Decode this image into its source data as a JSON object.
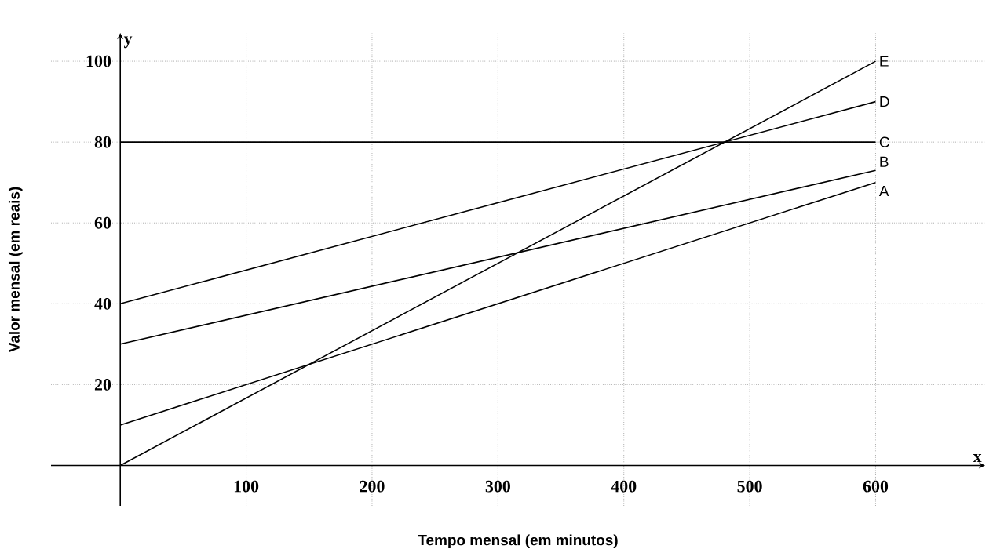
{
  "chart_data": {
    "type": "line",
    "xlabel": "Tempo mensal (em minutos)",
    "ylabel": "Valor mensal (em reais)",
    "annotations": [
      "x",
      "y"
    ],
    "xlim": [
      -55,
      687
    ],
    "ylim": [
      -10,
      107
    ],
    "xticks": [
      100,
      200,
      300,
      400,
      500,
      600
    ],
    "yticks": [
      20,
      40,
      60,
      80,
      100
    ],
    "grid": true,
    "marker": "none",
    "line_style": "solid",
    "x": [
      0,
      600
    ],
    "series": [
      {
        "name": "A",
        "color": "#000000",
        "values": [
          10,
          70
        ]
      },
      {
        "name": "B",
        "color": "#000000",
        "values": [
          30,
          73
        ]
      },
      {
        "name": "C",
        "color": "#000000",
        "values": [
          80,
          80
        ]
      },
      {
        "name": "D",
        "color": "#000000",
        "values": [
          40,
          90
        ]
      },
      {
        "name": "E",
        "color": "#000000",
        "values": [
          0,
          100
        ]
      }
    ]
  }
}
